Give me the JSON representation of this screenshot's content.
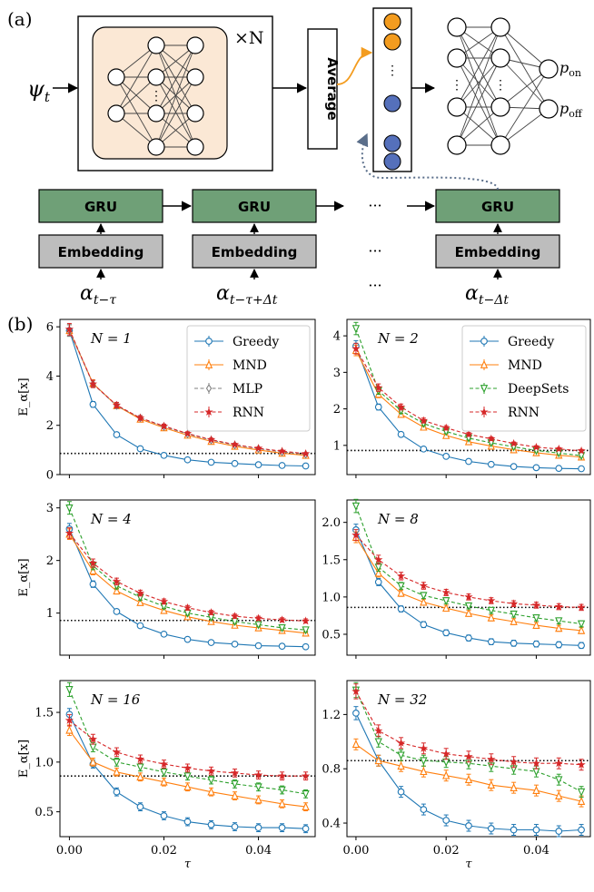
{
  "panel_labels": {
    "a": "(a)",
    "b": "(b)"
  },
  "diagram": {
    "input": "ψ",
    "input_sub": "t",
    "repeat": "×N",
    "average": "Average",
    "out_on": "p",
    "out_on_sub": "on",
    "out_off": "p",
    "out_off_sub": "off",
    "gru": "GRU",
    "embedding": "Embedding",
    "alpha": "α",
    "alpha_subs": [
      "t−τ",
      "t−τ+Δt",
      "t−Δt"
    ],
    "ellipsis": "···",
    "colors": {
      "orange": "#f39c1f",
      "blue": "#5570bb",
      "peach": "#fbe8d5",
      "gru": "#6fa077",
      "embed": "#bdbdbd",
      "dashed_link": "#5a6e8a"
    }
  },
  "chart_data": [
    {
      "type": "line",
      "title_text": "N = 1",
      "x": [
        0,
        0.005,
        0.01,
        0.015,
        0.02,
        0.025,
        0.03,
        0.035,
        0.04,
        0.045,
        0.05
      ],
      "xlim": [
        -0.002,
        0.052
      ],
      "ylim": [
        0,
        6.3
      ],
      "xticks": [
        "0.00",
        "0.02",
        "0.04"
      ],
      "yticks": [
        "0",
        "2",
        "4",
        "6"
      ],
      "ylabel": "E_α[x]",
      "xlabel": "",
      "reference_line": 0.86,
      "legend": "top-right",
      "series": [
        {
          "name": "Greedy",
          "color": "#1f77b4",
          "marker": "o",
          "dash": false,
          "values": [
            5.85,
            2.85,
            1.62,
            1.05,
            0.78,
            0.6,
            0.5,
            0.45,
            0.4,
            0.37,
            0.35
          ]
        },
        {
          "name": "MND",
          "color": "#ff7f0e",
          "marker": "^",
          "dash": false,
          "values": [
            5.85,
            3.7,
            2.8,
            2.25,
            1.9,
            1.6,
            1.35,
            1.15,
            1.0,
            0.87,
            0.78
          ]
        },
        {
          "name": "MLP",
          "color": "#7f7f7f",
          "marker": "d",
          "dash": true,
          "values": [
            5.85,
            3.68,
            2.8,
            2.3,
            1.95,
            1.65,
            1.4,
            1.2,
            1.05,
            0.92,
            0.82
          ]
        },
        {
          "name": "RNN",
          "color": "#d62728",
          "marker": "*",
          "dash": true,
          "values": [
            5.9,
            3.68,
            2.82,
            2.3,
            1.97,
            1.67,
            1.42,
            1.22,
            1.07,
            0.95,
            0.85
          ]
        }
      ]
    },
    {
      "type": "line",
      "title_text": "N = 2",
      "x": [
        0,
        0.005,
        0.01,
        0.015,
        0.02,
        0.025,
        0.03,
        0.035,
        0.04,
        0.045,
        0.05
      ],
      "xlim": [
        -0.002,
        0.052
      ],
      "ylim": [
        0.2,
        4.45
      ],
      "xticks": [
        "0.00",
        "0.02",
        "0.04"
      ],
      "yticks": [
        "1",
        "2",
        "3",
        "4"
      ],
      "ylabel": "",
      "xlabel": "",
      "reference_line": 0.86,
      "legend": "top-right",
      "series": [
        {
          "name": "Greedy",
          "color": "#1f77b4",
          "marker": "o",
          "dash": false,
          "values": [
            3.72,
            2.05,
            1.3,
            0.9,
            0.7,
            0.56,
            0.48,
            0.42,
            0.39,
            0.37,
            0.36
          ]
        },
        {
          "name": "MND",
          "color": "#ff7f0e",
          "marker": "^",
          "dash": false,
          "values": [
            3.6,
            2.4,
            1.85,
            1.5,
            1.27,
            1.1,
            0.98,
            0.88,
            0.8,
            0.73,
            0.68
          ]
        },
        {
          "name": "DeepSets",
          "color": "#2ca02c",
          "marker": "v",
          "dash": true,
          "values": [
            4.2,
            2.5,
            1.95,
            1.6,
            1.38,
            1.2,
            1.07,
            0.96,
            0.86,
            0.79,
            0.72
          ]
        },
        {
          "name": "RNN",
          "color": "#d62728",
          "marker": "*",
          "dash": true,
          "values": [
            3.65,
            2.58,
            2.05,
            1.68,
            1.48,
            1.3,
            1.18,
            1.05,
            0.95,
            0.9,
            0.85
          ]
        }
      ]
    },
    {
      "type": "line",
      "title_text": "N = 4",
      "x": [
        0,
        0.005,
        0.01,
        0.015,
        0.02,
        0.025,
        0.03,
        0.035,
        0.04,
        0.045,
        0.05
      ],
      "xlim": [
        -0.002,
        0.052
      ],
      "ylim": [
        0.2,
        3.15
      ],
      "xticks": [
        "0.00",
        "0.02",
        "0.04"
      ],
      "yticks": [
        "1",
        "2",
        "3"
      ],
      "ylabel": "E_α[x]",
      "xlabel": "",
      "reference_line": 0.86,
      "legend": "",
      "series": [
        {
          "name": "Greedy",
          "color": "#1f77b4",
          "marker": "o",
          "dash": false,
          "values": [
            2.6,
            1.55,
            1.03,
            0.76,
            0.6,
            0.5,
            0.44,
            0.41,
            0.38,
            0.37,
            0.36
          ]
        },
        {
          "name": "MND",
          "color": "#ff7f0e",
          "marker": "^",
          "dash": false,
          "values": [
            2.5,
            1.8,
            1.42,
            1.2,
            1.05,
            0.93,
            0.84,
            0.77,
            0.72,
            0.67,
            0.62
          ]
        },
        {
          "name": "DeepSets",
          "color": "#2ca02c",
          "marker": "v",
          "dash": true,
          "values": [
            3.0,
            1.9,
            1.52,
            1.3,
            1.13,
            1.0,
            0.92,
            0.84,
            0.78,
            0.72,
            0.68
          ]
        },
        {
          "name": "RNN",
          "color": "#d62728",
          "marker": "*",
          "dash": true,
          "values": [
            2.52,
            1.95,
            1.6,
            1.38,
            1.22,
            1.1,
            1.01,
            0.94,
            0.9,
            0.87,
            0.85
          ]
        }
      ]
    },
    {
      "type": "line",
      "title_text": "N = 8",
      "x": [
        0,
        0.005,
        0.01,
        0.015,
        0.02,
        0.025,
        0.03,
        0.035,
        0.04,
        0.045,
        0.05
      ],
      "xlim": [
        -0.002,
        0.052
      ],
      "ylim": [
        0.22,
        2.3
      ],
      "xticks": [
        "0.00",
        "0.02",
        "0.04"
      ],
      "yticks": [
        "0.5",
        "1.0",
        "1.5",
        "2.0"
      ],
      "ylabel": "",
      "xlabel": "",
      "reference_line": 0.86,
      "legend": "",
      "series": [
        {
          "name": "Greedy",
          "color": "#1f77b4",
          "marker": "o",
          "dash": false,
          "values": [
            1.9,
            1.2,
            0.84,
            0.63,
            0.52,
            0.45,
            0.4,
            0.38,
            0.37,
            0.36,
            0.35
          ]
        },
        {
          "name": "MND",
          "color": "#ff7f0e",
          "marker": "^",
          "dash": false,
          "values": [
            1.8,
            1.32,
            1.05,
            0.93,
            0.85,
            0.78,
            0.72,
            0.67,
            0.62,
            0.58,
            0.55
          ]
        },
        {
          "name": "DeepSets",
          "color": "#2ca02c",
          "marker": "v",
          "dash": true,
          "values": [
            2.22,
            1.4,
            1.15,
            1.02,
            0.95,
            0.88,
            0.82,
            0.77,
            0.72,
            0.68,
            0.64
          ]
        },
        {
          "name": "RNN",
          "color": "#d62728",
          "marker": "*",
          "dash": true,
          "values": [
            1.83,
            1.5,
            1.28,
            1.15,
            1.06,
            1.0,
            0.95,
            0.91,
            0.89,
            0.87,
            0.86
          ]
        }
      ]
    },
    {
      "type": "line",
      "title_text": "N = 16",
      "x": [
        0,
        0.005,
        0.01,
        0.015,
        0.02,
        0.025,
        0.03,
        0.035,
        0.04,
        0.045,
        0.05
      ],
      "xlim": [
        -0.002,
        0.052
      ],
      "ylim": [
        0.25,
        1.82
      ],
      "xticks": [
        "0.00",
        "0.02",
        "0.04"
      ],
      "yticks": [
        "0.5",
        "1.0",
        "1.5"
      ],
      "ylabel": "E_α[x]",
      "xlabel": "τ",
      "reference_line": 0.86,
      "legend": "",
      "series": [
        {
          "name": "Greedy",
          "color": "#1f77b4",
          "marker": "o",
          "dash": false,
          "values": [
            1.48,
            0.98,
            0.7,
            0.55,
            0.46,
            0.4,
            0.37,
            0.35,
            0.34,
            0.34,
            0.33
          ]
        },
        {
          "name": "MND",
          "color": "#ff7f0e",
          "marker": "^",
          "dash": false,
          "values": [
            1.32,
            1.0,
            0.9,
            0.85,
            0.8,
            0.75,
            0.7,
            0.66,
            0.62,
            0.58,
            0.55
          ]
        },
        {
          "name": "DeepSets",
          "color": "#2ca02c",
          "marker": "v",
          "dash": true,
          "values": [
            1.73,
            1.15,
            1.0,
            0.95,
            0.9,
            0.86,
            0.82,
            0.78,
            0.75,
            0.72,
            0.68
          ]
        },
        {
          "name": "RNN",
          "color": "#d62728",
          "marker": "*",
          "dash": true,
          "values": [
            1.42,
            1.23,
            1.1,
            1.03,
            0.98,
            0.94,
            0.91,
            0.89,
            0.87,
            0.86,
            0.86
          ]
        }
      ]
    },
    {
      "type": "line",
      "title_text": "N = 32",
      "x": [
        0,
        0.005,
        0.01,
        0.015,
        0.02,
        0.025,
        0.03,
        0.035,
        0.04,
        0.045,
        0.05
      ],
      "xlim": [
        -0.002,
        0.052
      ],
      "ylim": [
        0.3,
        1.45
      ],
      "xticks": [
        "0.00",
        "0.02",
        "0.04"
      ],
      "yticks": [
        "0.4",
        "0.8",
        "1.2"
      ],
      "ylabel": "",
      "xlabel": "τ",
      "reference_line": 0.86,
      "legend": "",
      "series": [
        {
          "name": "Greedy",
          "color": "#1f77b4",
          "marker": "o",
          "dash": false,
          "values": [
            1.21,
            0.86,
            0.63,
            0.5,
            0.42,
            0.38,
            0.36,
            0.35,
            0.35,
            0.34,
            0.35
          ]
        },
        {
          "name": "MND",
          "color": "#ff7f0e",
          "marker": "^",
          "dash": false,
          "values": [
            0.98,
            0.86,
            0.82,
            0.78,
            0.75,
            0.72,
            0.68,
            0.66,
            0.64,
            0.6,
            0.56
          ]
        },
        {
          "name": "DeepSets",
          "color": "#2ca02c",
          "marker": "v",
          "dash": true,
          "values": [
            1.38,
            1.0,
            0.9,
            0.86,
            0.85,
            0.84,
            0.82,
            0.8,
            0.78,
            0.72,
            0.63
          ]
        },
        {
          "name": "RNN",
          "color": "#d62728",
          "marker": "*",
          "dash": true,
          "values": [
            1.37,
            1.08,
            0.99,
            0.95,
            0.91,
            0.89,
            0.87,
            0.85,
            0.84,
            0.84,
            0.83
          ]
        }
      ]
    }
  ]
}
